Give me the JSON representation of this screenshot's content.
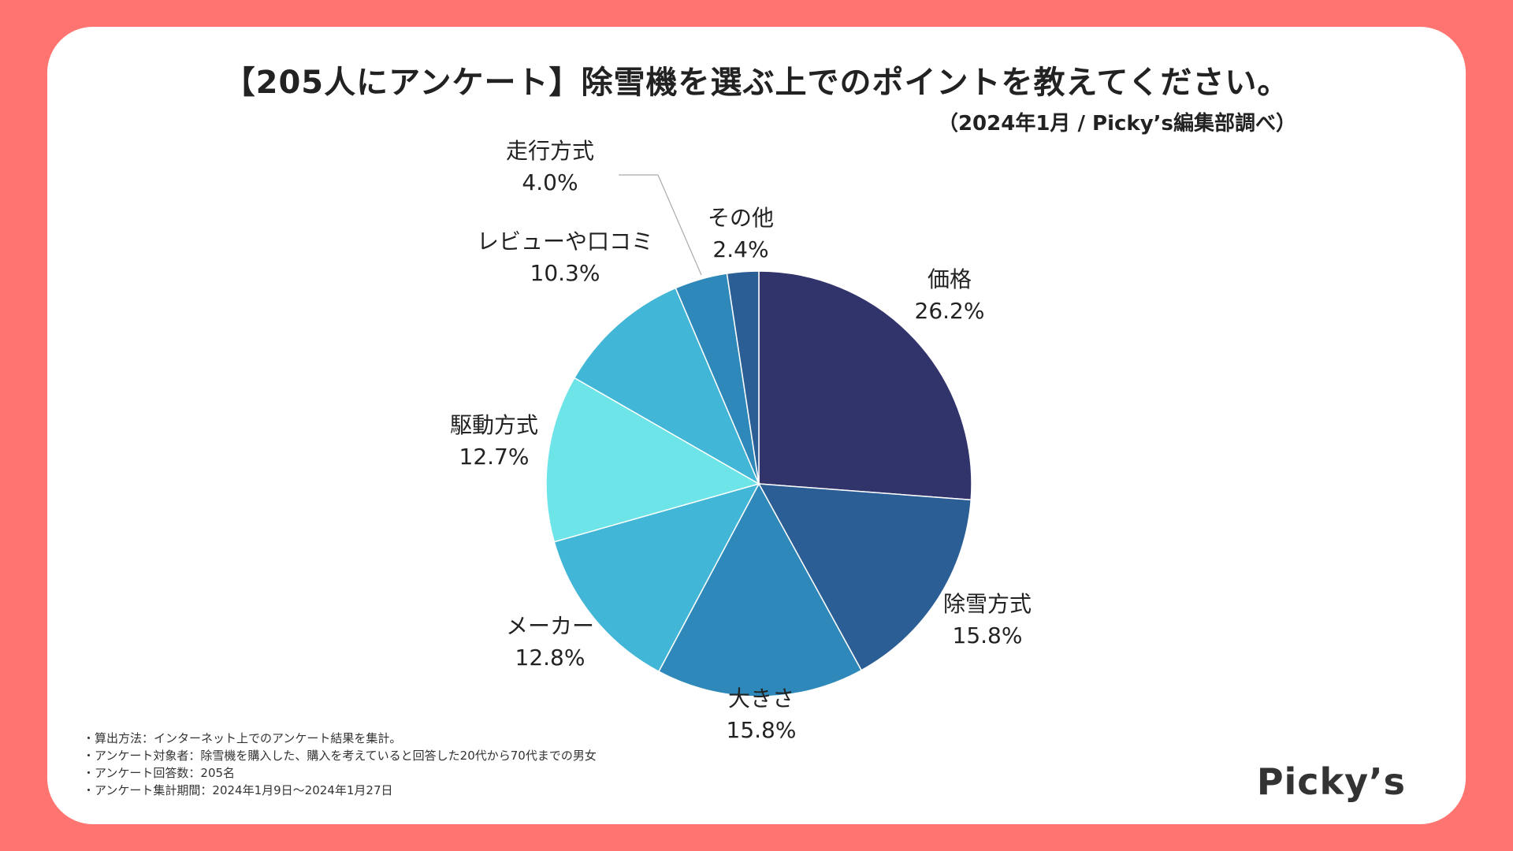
{
  "title": "【205人にアンケート】除雪機を選ぶ上でのポイントを教えてください。",
  "subtitle": "（2024年1月 / Picky’s編集部調べ）",
  "chart_data": {
    "type": "pie",
    "title": "【205人にアンケート】除雪機を選ぶ上でのポイントを教えてください。",
    "start": "12 o'clock, clockwise",
    "slices": [
      {
        "name": "価格",
        "value": 26.2,
        "label": "26.2%",
        "color": "#31336b"
      },
      {
        "name": "除雪方式",
        "value": 15.8,
        "label": "15.8%",
        "color": "#2c5e96"
      },
      {
        "name": "大きさ",
        "value": 15.8,
        "label": "15.8%",
        "color": "#2e89ba"
      },
      {
        "name": "メーカー",
        "value": 12.8,
        "label": "12.8%",
        "color": "#41b6d6"
      },
      {
        "name": "駆動方式",
        "value": 12.7,
        "label": "12.7%",
        "color": "#6de5e8"
      },
      {
        "name": "レビューや口コミ",
        "value": 10.3,
        "label": "10.3%",
        "color": "#41b6d6"
      },
      {
        "name": "走行方式",
        "value": 4.0,
        "label": "4.0%",
        "color": "#2e89ba"
      },
      {
        "name": "その他",
        "value": 2.4,
        "label": "2.4%",
        "color": "#2c5e96"
      }
    ]
  },
  "notes": [
    "算出方法：インターネット上でのアンケート結果を集計。",
    "アンケート対象者：除雪機を購入した、購入を考えていると回答した20代から70代までの男女",
    "アンケート回答数：205名",
    "アンケート集計期間：2024年1月9日〜2024年1月27日"
  ],
  "logo": "Picky’s",
  "colors": {
    "background": "#ff7370",
    "card": "#ffffff"
  }
}
